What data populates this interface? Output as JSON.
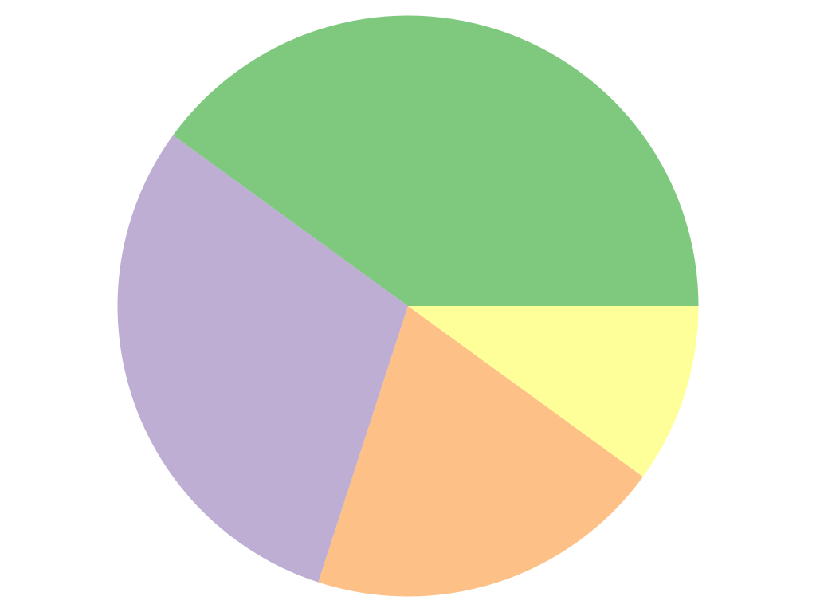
{
  "chart_data": {
    "type": "pie",
    "title": "",
    "start_angle_deg": 0,
    "direction": "counterclockwise",
    "slices": [
      {
        "value": 40,
        "color": "#7fc97f"
      },
      {
        "value": 30,
        "color": "#beaed4"
      },
      {
        "value": 20,
        "color": "#fdc086"
      },
      {
        "value": 10,
        "color": "#ffff99"
      }
    ],
    "legend": "none",
    "labels_shown": false
  }
}
